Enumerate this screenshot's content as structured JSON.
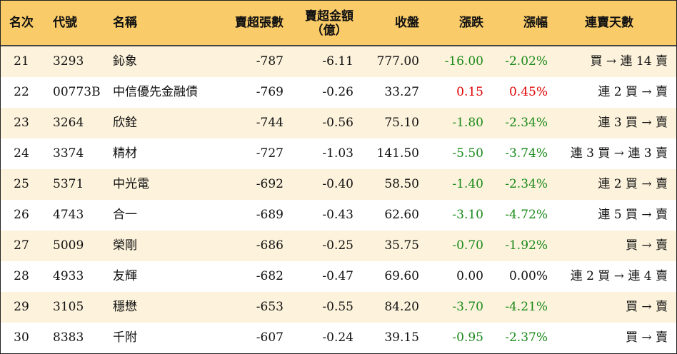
{
  "headers": {
    "rank": "名次",
    "code": "代號",
    "name": "名稱",
    "net_sell_lots": "賣超張數",
    "net_sell_amount_line1": "賣超金額",
    "net_sell_amount_line2": "（億）",
    "close": "收盤",
    "change": "漲跌",
    "change_pct": "漲幅",
    "streak": "連賣天數"
  },
  "colors": {
    "header_bg": "#f9cb69",
    "alt_row_bg": "#fdf3dc",
    "up": "#e00000",
    "down": "#1a8a1a"
  },
  "rows": [
    {
      "rank": "21",
      "code": "3293",
      "name": "鈊象",
      "lots": "-787",
      "amount": "-6.11",
      "close": "777.00",
      "change": "-16.00",
      "pct": "-2.02%",
      "streak": "買 → 連 14 賣",
      "dir": "neg"
    },
    {
      "rank": "22",
      "code": "00773B",
      "name": "中信優先金融債",
      "lots": "-769",
      "amount": "-0.26",
      "close": "33.27",
      "change": "0.15",
      "pct": "0.45%",
      "streak": "連 2 買 → 賣",
      "dir": "pos"
    },
    {
      "rank": "23",
      "code": "3264",
      "name": "欣銓",
      "lots": "-744",
      "amount": "-0.56",
      "close": "75.10",
      "change": "-1.80",
      "pct": "-2.34%",
      "streak": "連 3 買 → 賣",
      "dir": "neg"
    },
    {
      "rank": "24",
      "code": "3374",
      "name": "精材",
      "lots": "-727",
      "amount": "-1.03",
      "close": "141.50",
      "change": "-5.50",
      "pct": "-3.74%",
      "streak": "連 3 買 → 連 3 賣",
      "dir": "neg"
    },
    {
      "rank": "25",
      "code": "5371",
      "name": "中光電",
      "lots": "-692",
      "amount": "-0.40",
      "close": "58.50",
      "change": "-1.40",
      "pct": "-2.34%",
      "streak": "連 2 買 → 賣",
      "dir": "neg"
    },
    {
      "rank": "26",
      "code": "4743",
      "name": "合一",
      "lots": "-689",
      "amount": "-0.43",
      "close": "62.60",
      "change": "-3.10",
      "pct": "-4.72%",
      "streak": "連 5 買 → 賣",
      "dir": "neg"
    },
    {
      "rank": "27",
      "code": "5009",
      "name": "榮剛",
      "lots": "-686",
      "amount": "-0.25",
      "close": "35.75",
      "change": "-0.70",
      "pct": "-1.92%",
      "streak": "買 → 賣",
      "dir": "neg"
    },
    {
      "rank": "28",
      "code": "4933",
      "name": "友輝",
      "lots": "-682",
      "amount": "-0.47",
      "close": "69.60",
      "change": "0.00",
      "pct": "0.00%",
      "streak": "連 2 買 → 連 4 賣",
      "dir": "flat"
    },
    {
      "rank": "29",
      "code": "3105",
      "name": "穩懋",
      "lots": "-653",
      "amount": "-0.55",
      "close": "84.20",
      "change": "-3.70",
      "pct": "-4.21%",
      "streak": "買 → 賣",
      "dir": "neg"
    },
    {
      "rank": "30",
      "code": "8383",
      "name": "千附",
      "lots": "-607",
      "amount": "-0.24",
      "close": "39.15",
      "change": "-0.95",
      "pct": "-2.37%",
      "streak": "買 → 賣",
      "dir": "neg"
    }
  ]
}
